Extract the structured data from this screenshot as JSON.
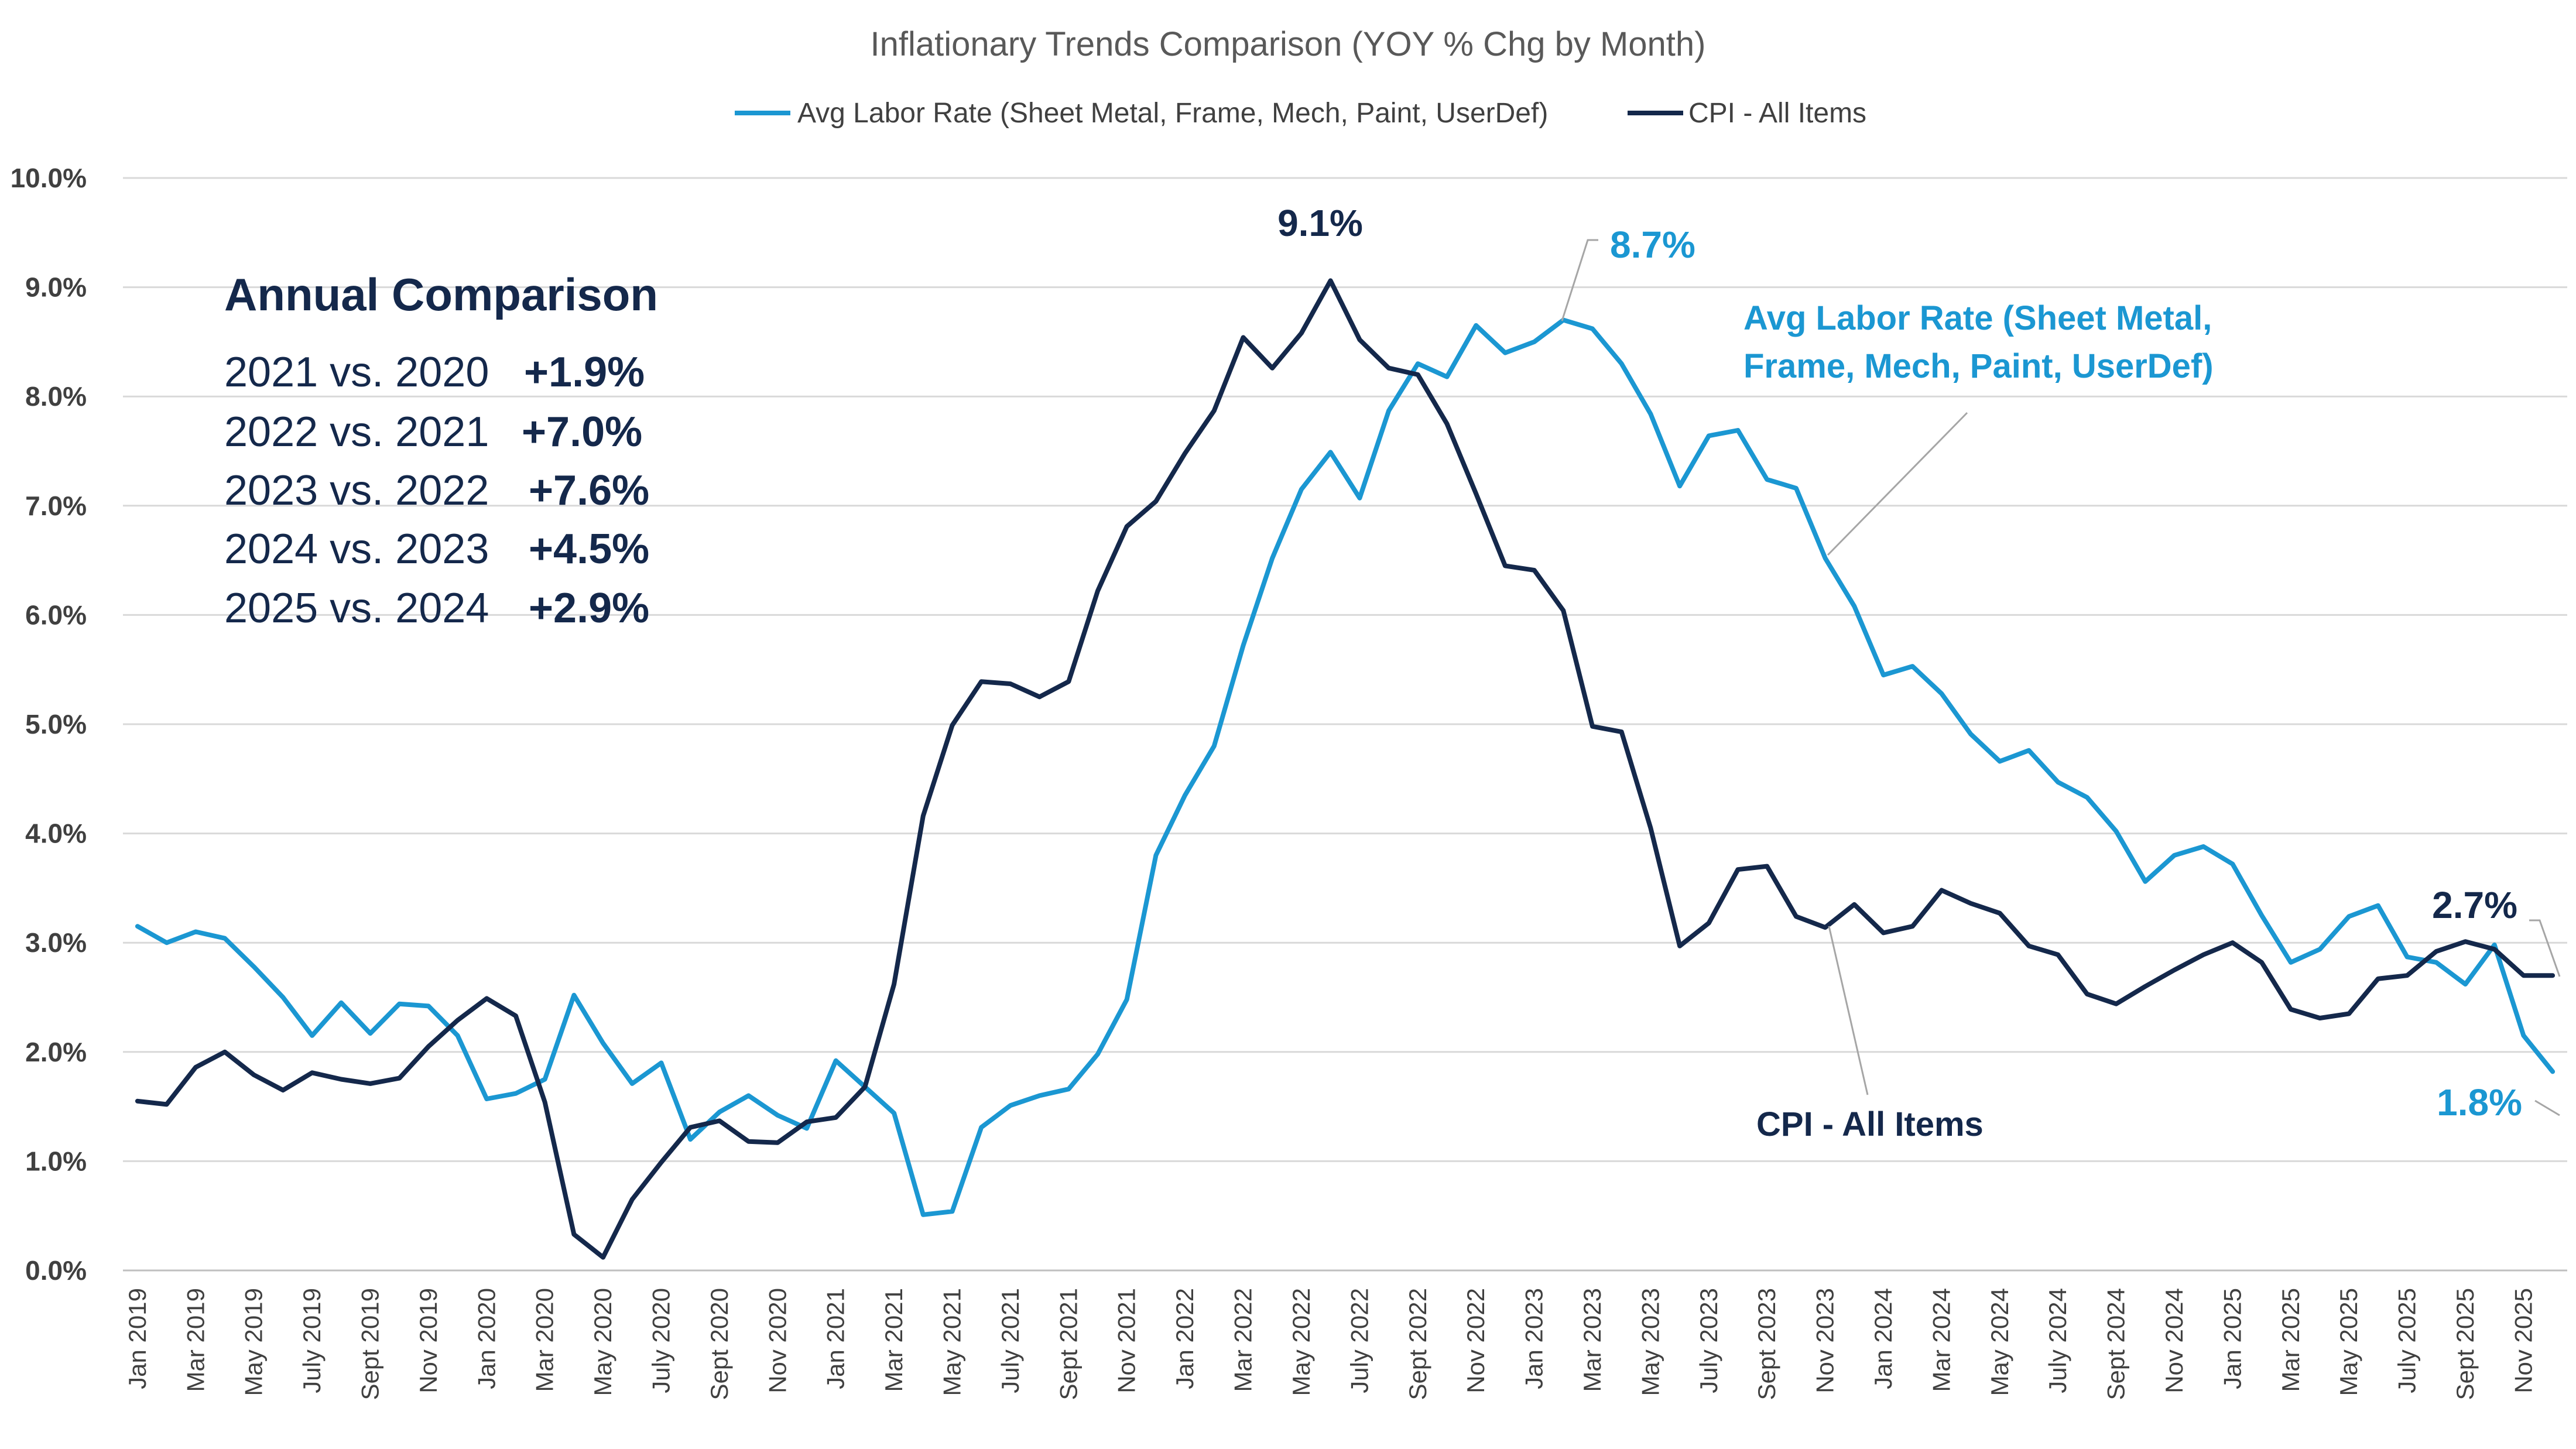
{
  "chart_data": {
    "type": "line",
    "title": "Inflationary Trends Comparison (YOY % Chg by Month)",
    "legend_position": "top",
    "ylim": [
      0,
      10
    ],
    "y_tick_labels": [
      "0.0%",
      "1.0%",
      "2.0%",
      "3.0%",
      "4.0%",
      "5.0%",
      "6.0%",
      "7.0%",
      "8.0%",
      "9.0%",
      "10.0%"
    ],
    "grid": true,
    "x": [
      "Jan 2019",
      "Feb 2019",
      "Mar 2019",
      "Apr 2019",
      "May 2019",
      "Jun 2019",
      "July 2019",
      "Aug 2019",
      "Sept 2019",
      "Oct 2019",
      "Nov 2019",
      "Dec 2019",
      "Jan 2020",
      "Feb 2020",
      "Mar 2020",
      "Apr 2020",
      "May 2020",
      "Jun 2020",
      "July 2020",
      "Aug 2020",
      "Sept 2020",
      "Oct 2020",
      "Nov 2020",
      "Dec 2020",
      "Jan 2021",
      "Feb 2021",
      "Mar 2021",
      "Apr 2021",
      "May 2021",
      "Jun 2021",
      "July 2021",
      "Aug 2021",
      "Sept 2021",
      "Oct 2021",
      "Nov 2021",
      "Dec 2021",
      "Jan 2022",
      "Feb 2022",
      "Mar 2022",
      "Apr 2022",
      "May 2022",
      "Jun 2022",
      "July 2022",
      "Aug 2022",
      "Sept 2022",
      "Oct 2022",
      "Nov 2022",
      "Dec 2022",
      "Jan 2023",
      "Feb 2023",
      "Mar 2023",
      "Apr 2023",
      "May 2023",
      "Jun 2023",
      "July 2023",
      "Aug 2023",
      "Sept 2023",
      "Oct 2023",
      "Nov 2023",
      "Dec 2023",
      "Jan 2024",
      "Feb 2024",
      "Mar 2024",
      "Apr 2024",
      "May 2024",
      "Jun 2024",
      "July 2024",
      "Aug 2024",
      "Sept 2024",
      "Oct 2024",
      "Nov 2024",
      "Dec 2024",
      "Jan 2025",
      "Feb 2025",
      "Mar 2025",
      "Apr 2025",
      "May 2025",
      "Jun 2025",
      "July 2025",
      "Aug 2025",
      "Sept 2025",
      "Oct 2025",
      "Nov 2025",
      "Dec 2025"
    ],
    "x_tick_labels": [
      "Jan 2019",
      "Mar 2019",
      "May 2019",
      "July 2019",
      "Sept 2019",
      "Nov 2019",
      "Jan 2020",
      "Mar 2020",
      "May 2020",
      "July 2020",
      "Sept 2020",
      "Nov 2020",
      "Jan 2021",
      "Mar 2021",
      "May 2021",
      "July 2021",
      "Sept 2021",
      "Nov 2021",
      "Jan 2022",
      "Mar 2022",
      "May 2022",
      "July 2022",
      "Sept 2022",
      "Nov 2022",
      "Jan 2023",
      "Mar 2023",
      "May 2023",
      "July 2023",
      "Sept 2023",
      "Nov 2023",
      "Jan 2024",
      "Mar 2024",
      "May 2024",
      "July 2024",
      "Sept 2024",
      "Nov 2024",
      "Jan 2025",
      "Mar 2025",
      "May 2025",
      "July 2025",
      "Sept 2025",
      "Nov 2025"
    ],
    "series": [
      {
        "name": "Avg Labor Rate (Sheet Metal, Frame, Mech, Paint, UserDef)",
        "color": "#1b97d2",
        "values": [
          3.15,
          3.0,
          3.1,
          3.04,
          2.78,
          2.5,
          2.15,
          2.45,
          2.17,
          2.44,
          2.42,
          2.15,
          1.57,
          1.62,
          1.75,
          2.52,
          2.08,
          1.71,
          1.9,
          1.2,
          1.45,
          1.6,
          1.42,
          1.3,
          1.92,
          1.68,
          1.44,
          0.51,
          0.54,
          1.31,
          1.51,
          1.6,
          1.66,
          1.98,
          2.48,
          3.8,
          4.35,
          4.8,
          5.72,
          6.52,
          7.15,
          7.49,
          7.07,
          7.87,
          8.3,
          8.18,
          8.65,
          8.4,
          8.5,
          8.7,
          8.62,
          8.3,
          7.84,
          7.18,
          7.64,
          7.69,
          7.24,
          7.16,
          6.52,
          6.08,
          5.45,
          5.53,
          5.28,
          4.91,
          4.66,
          4.76,
          4.47,
          4.33,
          4.02,
          3.56,
          3.8,
          3.88,
          3.72,
          3.25,
          2.82,
          2.94,
          3.24,
          3.34,
          2.87,
          2.82,
          2.62,
          2.98,
          2.15,
          1.82
        ]
      },
      {
        "name": "CPI - All Items",
        "color": "#14284b",
        "values": [
          1.55,
          1.52,
          1.86,
          2.0,
          1.79,
          1.65,
          1.81,
          1.75,
          1.71,
          1.76,
          2.05,
          2.29,
          2.49,
          2.33,
          1.54,
          0.33,
          0.12,
          0.65,
          0.99,
          1.31,
          1.37,
          1.18,
          1.17,
          1.36,
          1.4,
          1.68,
          2.62,
          4.16,
          4.99,
          5.39,
          5.37,
          5.25,
          5.39,
          6.22,
          6.81,
          7.04,
          7.48,
          7.87,
          8.54,
          8.26,
          8.58,
          9.06,
          8.52,
          8.26,
          8.2,
          7.75,
          7.11,
          6.45,
          6.41,
          6.04,
          4.98,
          4.93,
          4.05,
          2.97,
          3.18,
          3.67,
          3.7,
          3.24,
          3.14,
          3.35,
          3.09,
          3.15,
          3.48,
          3.36,
          3.27,
          2.97,
          2.89,
          2.53,
          2.44,
          2.6,
          2.75,
          2.89,
          3.0,
          2.82,
          2.39,
          2.31,
          2.35,
          2.67,
          2.7,
          2.92,
          3.01,
          2.94,
          2.7,
          2.7
        ]
      }
    ],
    "annotations": {
      "annual_title": "Annual Comparison",
      "annual_rows": [
        {
          "label": "2021 vs. 2020",
          "value": "+1.9%"
        },
        {
          "label": "2022 vs. 2021",
          "value": "+7.0%"
        },
        {
          "label": "2023 vs. 2022",
          "value": "+7.6%"
        },
        {
          "label": "2024 vs. 2023",
          "value": "+4.5%"
        },
        {
          "label": "2025 vs. 2024",
          "value": "+2.9%"
        }
      ],
      "cpi_peak": "9.1%",
      "labor_peak": "8.7%",
      "cpi_last": "2.7%",
      "labor_last": "1.8%",
      "labor_callout_line1": "Avg Labor Rate (Sheet Metal,",
      "labor_callout_line2": "Frame, Mech, Paint, UserDef)",
      "cpi_callout": "CPI - All Items"
    }
  }
}
